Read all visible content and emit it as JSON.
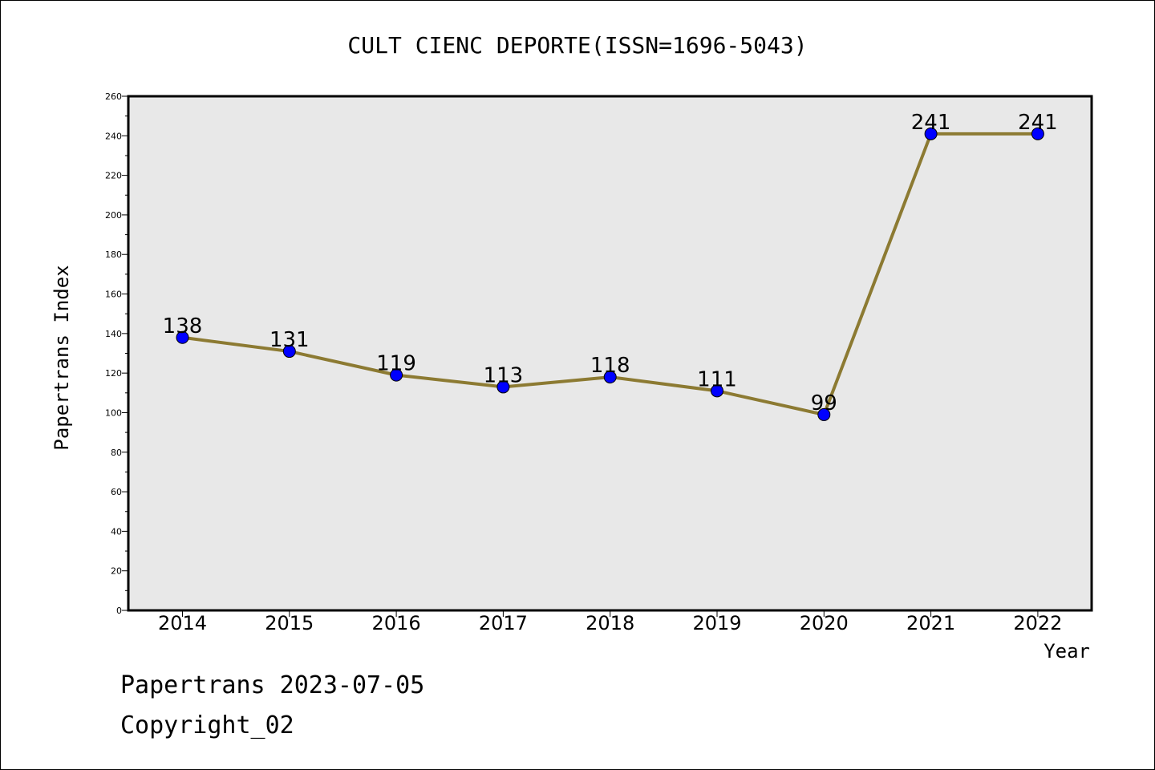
{
  "chart_data": {
    "type": "line",
    "title": "CULT CIENC DEPORTE(ISSN=1696-5043)",
    "xlabel": "Year",
    "ylabel": "Papertrans Index",
    "categories": [
      "2014",
      "2015",
      "2016",
      "2017",
      "2018",
      "2019",
      "2020",
      "2021",
      "2022"
    ],
    "series": [
      {
        "values": [
          138,
          131,
          119,
          113,
          118,
          111,
          99,
          241,
          241
        ]
      }
    ],
    "data_labels": [
      "138",
      "131",
      "119",
      "113",
      "118",
      "111",
      "99",
      "241",
      "241"
    ],
    "ylim": [
      0,
      260
    ],
    "yticks": [
      "0",
      "20",
      "40",
      "60",
      "80",
      "100",
      "120",
      "140",
      "160",
      "180",
      "200",
      "220",
      "240",
      "260"
    ],
    "grid": false,
    "line_color": "#8c7a32",
    "marker_color": "#0000ff",
    "plot_background": "#e8e8e8"
  },
  "footer": {
    "line1": "Papertrans 2023-07-05",
    "line2": "Copyright_02"
  }
}
